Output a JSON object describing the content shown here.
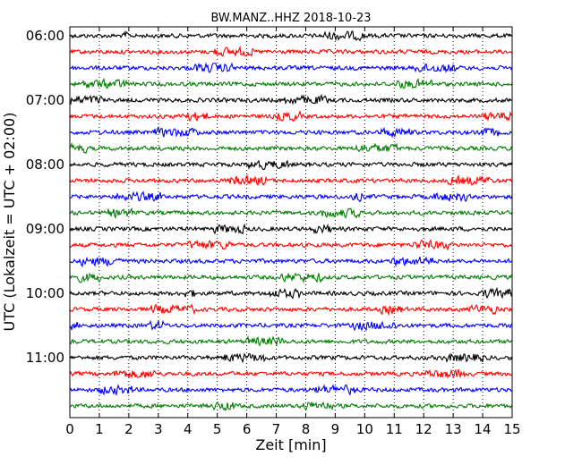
{
  "chart_data": {
    "type": "line",
    "title": "BW.MANZ..HHZ 2018-10-23",
    "xlabel": "Zeit  [min]",
    "ylabel": "UTC (Lokalzeit = UTC + 02:00)",
    "xlim": [
      0,
      15
    ],
    "x_ticks": [
      "0",
      "1",
      "2",
      "3",
      "4",
      "5",
      "6",
      "7",
      "8",
      "9",
      "10",
      "11",
      "12",
      "13",
      "14",
      "15"
    ],
    "y_tick_labels": [
      "06:00",
      "07:00",
      "08:00",
      "09:00",
      "10:00",
      "11:00"
    ],
    "trace_interval_min": 15,
    "trace_colors": [
      "#000000",
      "#ff0000",
      "#0000ff",
      "#007f00"
    ],
    "traces": [
      "06:00",
      "06:15",
      "06:30",
      "06:45",
      "07:00",
      "07:15",
      "07:30",
      "07:45",
      "08:00",
      "08:15",
      "08:30",
      "08:45",
      "09:00",
      "09:15",
      "09:30",
      "09:45",
      "10:00",
      "10:15",
      "10:30",
      "10:45",
      "11:00",
      "11:15",
      "11:30",
      "11:45"
    ],
    "grid": "vertical-dotted"
  }
}
